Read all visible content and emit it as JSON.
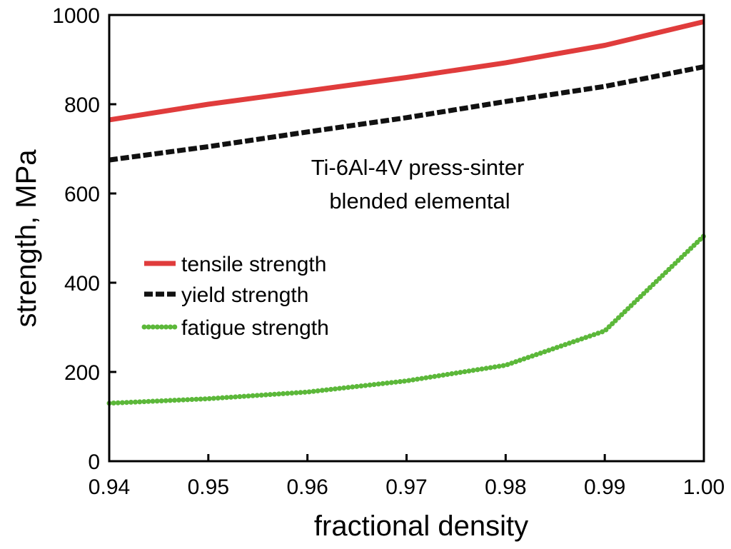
{
  "chart_data": {
    "type": "line",
    "title": "",
    "xlabel": "fractional density",
    "ylabel": "strength, MPa",
    "xlim": [
      0.94,
      1.0
    ],
    "ylim": [
      0,
      1000
    ],
    "xticks": [
      "0.94",
      "0.95",
      "0.96",
      "0.97",
      "0.98",
      "0.99",
      "1.00"
    ],
    "yticks": [
      "0",
      "200",
      "400",
      "600",
      "800",
      "1000"
    ],
    "annotation_lines": [
      "Ti-6Al-4V press-sinter",
      "blended elemental"
    ],
    "legend_position": "center-left",
    "series": [
      {
        "name": "tensile strength",
        "color": "#e03c3c",
        "style": "solid",
        "x": [
          0.94,
          0.95,
          0.96,
          0.97,
          0.98,
          0.99,
          1.0
        ],
        "y": [
          765,
          800,
          830,
          860,
          893,
          932,
          985
        ]
      },
      {
        "name": "yield strength",
        "color": "#111111",
        "style": "dashed",
        "x": [
          0.94,
          0.95,
          0.96,
          0.97,
          0.98,
          0.99,
          1.0
        ],
        "y": [
          675,
          705,
          738,
          770,
          806,
          840,
          884
        ]
      },
      {
        "name": "fatigue strength",
        "color": "#5cb83a",
        "style": "dotted",
        "x": [
          0.94,
          0.95,
          0.96,
          0.97,
          0.98,
          0.99,
          1.0
        ],
        "y": [
          130,
          140,
          155,
          180,
          215,
          292,
          505
        ]
      }
    ]
  }
}
